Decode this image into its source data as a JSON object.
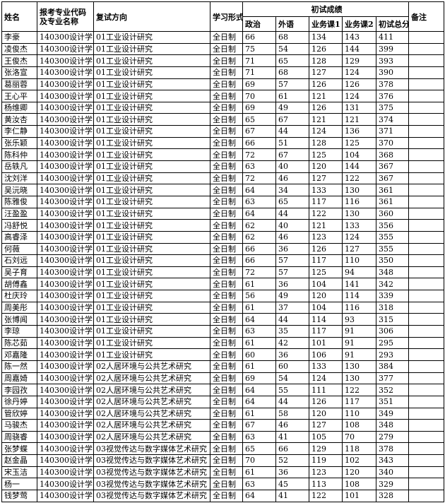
{
  "headers": {
    "name": "姓名",
    "major": "报考专业代码及专业名称",
    "direction": "复试方向",
    "study_mode": "学习形式",
    "prelim_group": "初试成绩",
    "politics": "政治",
    "foreign_lang": "外语",
    "course1": "业务课1",
    "course2": "业务课2",
    "total": "初试总分",
    "remarks": "备注"
  },
  "rows": [
    {
      "name": "李豪",
      "major": "140300设计学",
      "direction": "01工业设计研究",
      "mode": "全日制",
      "politics": "66",
      "lang": "68",
      "c1": "134",
      "c2": "143",
      "total": "411",
      "remark": ""
    },
    {
      "name": "凌俊杰",
      "major": "140300设计学",
      "direction": "01工业设计研究",
      "mode": "全日制",
      "politics": "75",
      "lang": "54",
      "c1": "126",
      "c2": "144",
      "total": "399",
      "remark": ""
    },
    {
      "name": "王俊杰",
      "major": "140300设计学",
      "direction": "01工业设计研究",
      "mode": "全日制",
      "politics": "71",
      "lang": "65",
      "c1": "128",
      "c2": "129",
      "total": "393",
      "remark": ""
    },
    {
      "name": "张洛宣",
      "major": "140300设计学",
      "direction": "01工业设计研究",
      "mode": "全日制",
      "politics": "71",
      "lang": "68",
      "c1": "127",
      "c2": "124",
      "total": "390",
      "remark": ""
    },
    {
      "name": "葛丽蓉",
      "major": "140300设计学",
      "direction": "01工业设计研究",
      "mode": "全日制",
      "politics": "69",
      "lang": "57",
      "c1": "126",
      "c2": "126",
      "total": "378",
      "remark": ""
    },
    {
      "name": "王心平",
      "major": "140300设计学",
      "direction": "01工业设计研究",
      "mode": "全日制",
      "politics": "70",
      "lang": "61",
      "c1": "121",
      "c2": "124",
      "total": "376",
      "remark": ""
    },
    {
      "name": "杨维卿",
      "major": "140300设计学",
      "direction": "01工业设计研究",
      "mode": "全日制",
      "politics": "69",
      "lang": "49",
      "c1": "126",
      "c2": "131",
      "total": "375",
      "remark": ""
    },
    {
      "name": "黄汝杏",
      "major": "140300设计学",
      "direction": "01工业设计研究",
      "mode": "全日制",
      "politics": "65",
      "lang": "67",
      "c1": "121",
      "c2": "121",
      "total": "374",
      "remark": ""
    },
    {
      "name": "李仁静",
      "major": "140300设计学",
      "direction": "01工业设计研究",
      "mode": "全日制",
      "politics": "67",
      "lang": "44",
      "c1": "124",
      "c2": "136",
      "total": "371",
      "remark": ""
    },
    {
      "name": "张乐颖",
      "major": "140300设计学",
      "direction": "01工业设计研究",
      "mode": "全日制",
      "politics": "66",
      "lang": "51",
      "c1": "128",
      "c2": "125",
      "total": "370",
      "remark": ""
    },
    {
      "name": "陈科仲",
      "major": "140300设计学",
      "direction": "01工业设计研究",
      "mode": "全日制",
      "politics": "72",
      "lang": "67",
      "c1": "125",
      "c2": "104",
      "total": "368",
      "remark": ""
    },
    {
      "name": "岳轶凡",
      "major": "140300设计学",
      "direction": "01工业设计研究",
      "mode": "全日制",
      "politics": "63",
      "lang": "40",
      "c1": "120",
      "c2": "144",
      "total": "367",
      "remark": ""
    },
    {
      "name": "沈刘洋",
      "major": "140300设计学",
      "direction": "01工业设计研究",
      "mode": "全日制",
      "politics": "72",
      "lang": "46",
      "c1": "127",
      "c2": "122",
      "total": "367",
      "remark": ""
    },
    {
      "name": "吴沅晓",
      "major": "140300设计学",
      "direction": "01工业设计研究",
      "mode": "全日制",
      "politics": "64",
      "lang": "34",
      "c1": "133",
      "c2": "130",
      "total": "361",
      "remark": ""
    },
    {
      "name": "陈雅俊",
      "major": "140300设计学",
      "direction": "01工业设计研究",
      "mode": "全日制",
      "politics": "63",
      "lang": "65",
      "c1": "117",
      "c2": "116",
      "total": "361",
      "remark": ""
    },
    {
      "name": "汪盈盈",
      "major": "140300设计学",
      "direction": "01工业设计研究",
      "mode": "全日制",
      "politics": "64",
      "lang": "44",
      "c1": "122",
      "c2": "130",
      "total": "360",
      "remark": ""
    },
    {
      "name": "冯舒悦",
      "major": "140300设计学",
      "direction": "01工业设计研究",
      "mode": "全日制",
      "politics": "62",
      "lang": "40",
      "c1": "121",
      "c2": "133",
      "total": "356",
      "remark": ""
    },
    {
      "name": "高睿泽",
      "major": "140300设计学",
      "direction": "01工业设计研究",
      "mode": "全日制",
      "politics": "62",
      "lang": "46",
      "c1": "123",
      "c2": "124",
      "total": "355",
      "remark": ""
    },
    {
      "name": "何薇",
      "major": "140300设计学",
      "direction": "01工业设计研究",
      "mode": "全日制",
      "politics": "66",
      "lang": "36",
      "c1": "126",
      "c2": "127",
      "total": "355",
      "remark": ""
    },
    {
      "name": "石刘远",
      "major": "140300设计学",
      "direction": "01工业设计研究",
      "mode": "全日制",
      "politics": "66",
      "lang": "57",
      "c1": "117",
      "c2": "110",
      "total": "350",
      "remark": ""
    },
    {
      "name": "吴子育",
      "major": "140300设计学",
      "direction": "01工业设计研究",
      "mode": "全日制",
      "politics": "72",
      "lang": "57",
      "c1": "125",
      "c2": "94",
      "total": "348",
      "remark": ""
    },
    {
      "name": "胡傅鑫",
      "major": "140300设计学",
      "direction": "01工业设计研究",
      "mode": "全日制",
      "politics": "61",
      "lang": "36",
      "c1": "104",
      "c2": "141",
      "total": "342",
      "remark": ""
    },
    {
      "name": "杜庆玲",
      "major": "140300设计学",
      "direction": "01工业设计研究",
      "mode": "全日制",
      "politics": "56",
      "lang": "49",
      "c1": "120",
      "c2": "114",
      "total": "339",
      "remark": ""
    },
    {
      "name": "周美彤",
      "major": "140300设计学",
      "direction": "01工业设计研究",
      "mode": "全日制",
      "politics": "61",
      "lang": "37",
      "c1": "104",
      "c2": "116",
      "total": "318",
      "remark": ""
    },
    {
      "name": "张博闻",
      "major": "140300设计学",
      "direction": "01工业设计研究",
      "mode": "全日制",
      "politics": "64",
      "lang": "44",
      "c1": "114",
      "c2": "93",
      "total": "315",
      "remark": ""
    },
    {
      "name": "李琼",
      "major": "140300设计学",
      "direction": "01工业设计研究",
      "mode": "全日制",
      "politics": "63",
      "lang": "35",
      "c1": "117",
      "c2": "91",
      "total": "306",
      "remark": ""
    },
    {
      "name": "陈芯茹",
      "major": "140300设计学",
      "direction": "01工业设计研究",
      "mode": "全日制",
      "politics": "61",
      "lang": "42",
      "c1": "101",
      "c2": "91",
      "total": "295",
      "remark": ""
    },
    {
      "name": "邓嘉隆",
      "major": "140300设计学",
      "direction": "01工业设计研究",
      "mode": "全日制",
      "politics": "60",
      "lang": "36",
      "c1": "106",
      "c2": "91",
      "total": "293",
      "remark": ""
    },
    {
      "name": "陈一然",
      "major": "140300设计学",
      "direction": "02人居环境与公共艺术研究",
      "mode": "全日制",
      "politics": "61",
      "lang": "60",
      "c1": "133",
      "c2": "130",
      "total": "384",
      "remark": ""
    },
    {
      "name": "周嘉婍",
      "major": "140300设计学",
      "direction": "02人居环境与公共艺术研究",
      "mode": "全日制",
      "politics": "69",
      "lang": "54",
      "c1": "124",
      "c2": "130",
      "total": "377",
      "remark": ""
    },
    {
      "name": "李园孜",
      "major": "140300设计学",
      "direction": "02人居环境与公共艺术研究",
      "mode": "全日制",
      "politics": "64",
      "lang": "55",
      "c1": "111",
      "c2": "122",
      "total": "352",
      "remark": ""
    },
    {
      "name": "徐丹婷",
      "major": "140300设计学",
      "direction": "02人居环境与公共艺术研究",
      "mode": "全日制",
      "politics": "64",
      "lang": "44",
      "c1": "126",
      "c2": "117",
      "total": "351",
      "remark": ""
    },
    {
      "name": "管欣婷",
      "major": "140300设计学",
      "direction": "02人居环境与公共艺术研究",
      "mode": "全日制",
      "politics": "61",
      "lang": "58",
      "c1": "120",
      "c2": "110",
      "total": "349",
      "remark": ""
    },
    {
      "name": "马骏杰",
      "major": "140300设计学",
      "direction": "02人居环境与公共艺术研究",
      "mode": "全日制",
      "politics": "67",
      "lang": "46",
      "c1": "127",
      "c2": "108",
      "total": "348",
      "remark": ""
    },
    {
      "name": "周骁睿",
      "major": "140300设计学",
      "direction": "02人居环境与公共艺术研究",
      "mode": "全日制",
      "politics": "63",
      "lang": "41",
      "c1": "105",
      "c2": "70",
      "total": "279",
      "remark": ""
    },
    {
      "name": "张梦蝶",
      "major": "140300设计学",
      "direction": "03视觉传达与数字媒体艺术研究",
      "mode": "全日制",
      "politics": "65",
      "lang": "66",
      "c1": "129",
      "c2": "118",
      "total": "378",
      "remark": ""
    },
    {
      "name": "赵金晶",
      "major": "140300设计学",
      "direction": "03视觉传达与数字媒体艺术研究",
      "mode": "全日制",
      "politics": "70",
      "lang": "52",
      "c1": "119",
      "c2": "102",
      "total": "343",
      "remark": ""
    },
    {
      "name": "宋玉洁",
      "major": "140300设计学",
      "direction": "03视觉传达与数字媒体艺术研究",
      "mode": "全日制",
      "politics": "61",
      "lang": "36",
      "c1": "123",
      "c2": "120",
      "total": "340",
      "remark": ""
    },
    {
      "name": "杨一",
      "major": "140300设计学",
      "direction": "03视觉传达与数字媒体艺术研究",
      "mode": "全日制",
      "politics": "63",
      "lang": "45",
      "c1": "113",
      "c2": "108",
      "total": "329",
      "remark": ""
    },
    {
      "name": "钱梦莺",
      "major": "140300设计学",
      "direction": "03视觉传达与数字媒体艺术研究",
      "mode": "全日制",
      "politics": "64",
      "lang": "41",
      "c1": "122",
      "c2": "101",
      "total": "328",
      "remark": ""
    }
  ]
}
